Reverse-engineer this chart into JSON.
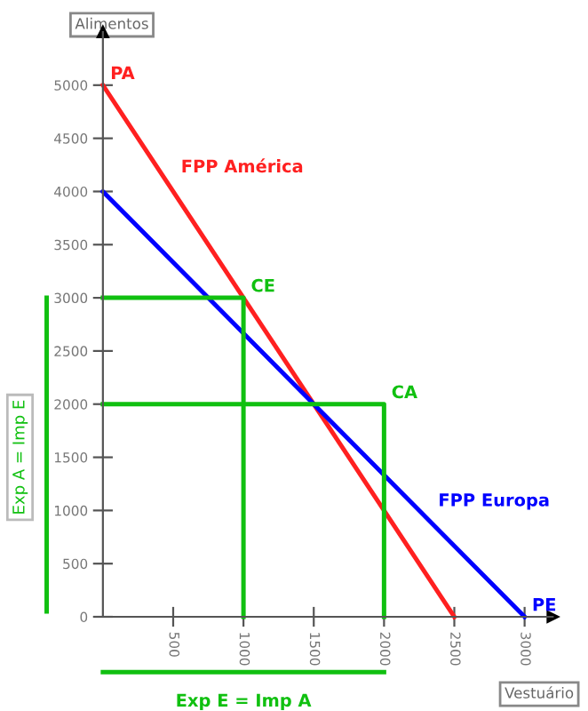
{
  "chart_data": {
    "type": "line",
    "xlabel": "Vestuário",
    "ylabel": "Alimentos",
    "series": [
      {
        "name": "FPP América",
        "color": "#ff2020",
        "x": [
          0,
          2500
        ],
        "values": [
          5000,
          0
        ]
      },
      {
        "name": "FPP Europa",
        "color": "#0000ff",
        "x": [
          0,
          3000
        ],
        "values": [
          4000,
          0
        ]
      },
      {
        "color": "#10c010",
        "x": [
          0,
          1000,
          1000
        ],
        "values": [
          3000,
          3000,
          0
        ]
      },
      {
        "color": "#10c010",
        "x": [
          0,
          2000,
          2000
        ],
        "values": [
          2000,
          2000,
          0
        ]
      }
    ],
    "annotations": [
      {
        "text": "PA",
        "x": 0,
        "y": 5000
      },
      {
        "text": "CE",
        "x": 1000,
        "y": 3000
      },
      {
        "text": "CA",
        "x": 2000,
        "y": 2000
      },
      {
        "text": "PE",
        "x": 3000,
        "y": 0
      },
      "Exp A = Imp E",
      "Exp E = Imp A"
    ],
    "xlim": [
      0,
      3200
    ],
    "ylim": [
      0,
      5500
    ],
    "xticks": [
      500,
      1000,
      1500,
      2000,
      2500,
      3000
    ],
    "yticks": [
      0,
      500,
      1000,
      1500,
      2000,
      2500,
      3000,
      3500,
      4000,
      4500,
      5000
    ],
    "grid": false,
    "legend": false,
    "marker": "none",
    "line_style": "solid"
  }
}
